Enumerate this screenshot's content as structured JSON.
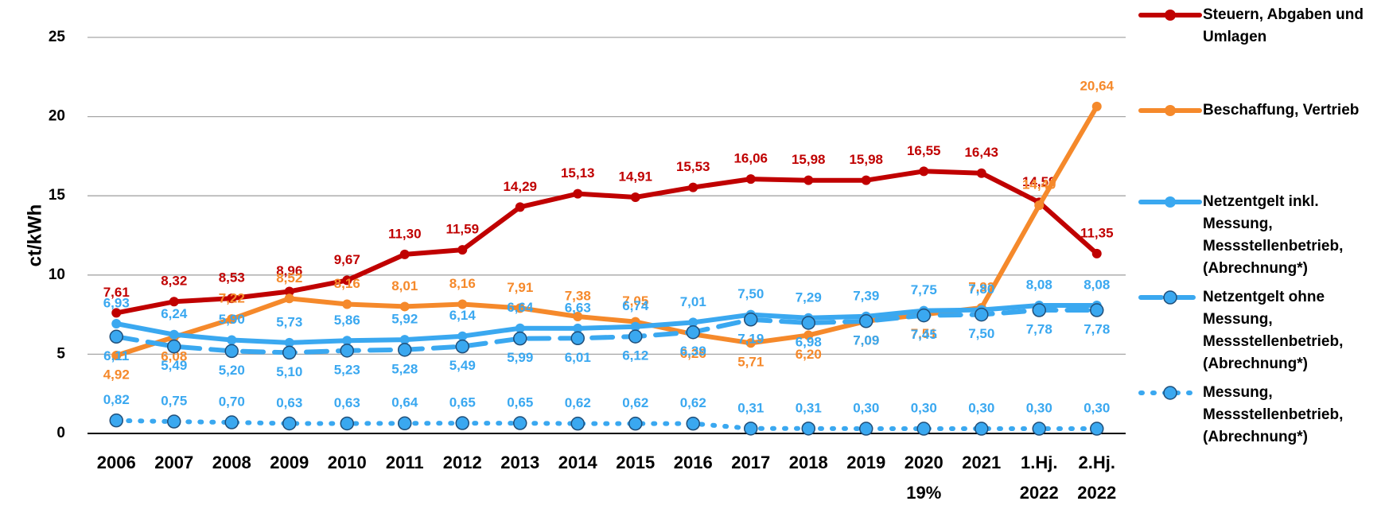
{
  "chart_data": {
    "type": "line",
    "y_label": "ct/kWh",
    "categories": [
      [
        "2006"
      ],
      [
        "2007"
      ],
      [
        "2008"
      ],
      [
        "2009"
      ],
      [
        "2010"
      ],
      [
        "2011"
      ],
      [
        "2012"
      ],
      [
        "2013"
      ],
      [
        "2014"
      ],
      [
        "2015"
      ],
      [
        "2016"
      ],
      [
        "2017"
      ],
      [
        "2018"
      ],
      [
        "2019"
      ],
      [
        "2020",
        "19%"
      ],
      [
        "2021"
      ],
      [
        "1.Hj.",
        "2022"
      ],
      [
        "2.Hj.",
        "2022"
      ]
    ],
    "ylim": [
      0,
      25
    ],
    "yticks": [
      0,
      5,
      10,
      15,
      20,
      25
    ],
    "grid": true,
    "legend": "right",
    "series": [
      {
        "name": "Steuern, Abgaben und Umlagen",
        "color": "#c00000",
        "dash": "solid",
        "label_side": "above",
        "values": [
          7.61,
          8.32,
          8.53,
          8.96,
          9.67,
          11.3,
          11.59,
          14.29,
          15.13,
          14.91,
          15.53,
          16.06,
          15.98,
          15.98,
          16.55,
          16.43,
          14.59,
          11.35
        ],
        "value_labels": [
          "7,61",
          "8,32",
          "8,53",
          "8,96",
          "9,67",
          "11,30",
          "11,59",
          "14,29",
          "15,13",
          "14,91",
          "15,53",
          "16,06",
          "15,98",
          "15,98",
          "16,55",
          "16,43",
          "14,59",
          "11,35"
        ]
      },
      {
        "name": "Beschaffung, Vertrieb",
        "color": "#f5892b",
        "dash": "solid",
        "label_side": "auto",
        "values": [
          4.92,
          6.08,
          7.22,
          8.52,
          8.16,
          8.01,
          8.16,
          7.91,
          7.38,
          7.05,
          6.26,
          5.71,
          6.2,
          7.09,
          7.51,
          7.93,
          14.4,
          20.64
        ],
        "value_labels": [
          "4,92",
          "6,08",
          "7,22",
          "8,52",
          "8,16",
          "8,01",
          "8,16",
          "7,91",
          "7,38",
          "7,05",
          "6,26",
          "5,71",
          "6,20",
          "7,09",
          "7,51",
          "7,93",
          "14,40",
          "20,64"
        ]
      },
      {
        "name": "Netzentgelt inkl. Messung, Messstellenbetrieb, (Abrechnung*)",
        "color": "#3aa8f0",
        "dash": "solid",
        "label_side": "above",
        "values": [
          6.93,
          6.24,
          5.9,
          5.73,
          5.86,
          5.92,
          6.14,
          6.64,
          6.63,
          6.74,
          7.01,
          7.5,
          7.29,
          7.39,
          7.75,
          7.8,
          8.08,
          8.08
        ],
        "value_labels": [
          "6,93",
          "6,24",
          "5,90",
          "5,73",
          "5,86",
          "5,92",
          "6,14",
          "6,64",
          "6,63",
          "6,74",
          "7,01",
          "7,50",
          "7,29",
          "7,39",
          "7,75",
          "7,80",
          "8,08",
          "8,08"
        ]
      },
      {
        "name": "Netzentgelt ohne Messung, Messstellenbetrieb, (Abrechnung*)",
        "color": "#3aa8f0",
        "dash": "dashed",
        "label_side": "below",
        "values": [
          6.11,
          5.49,
          5.2,
          5.1,
          5.23,
          5.28,
          5.49,
          5.99,
          6.01,
          6.12,
          6.39,
          7.19,
          6.98,
          7.09,
          7.45,
          7.5,
          7.78,
          7.78
        ],
        "value_labels": [
          "6,11",
          "5,49",
          "5,20",
          "5,10",
          "5,23",
          "5,28",
          "5,49",
          "5,99",
          "6,01",
          "6,12",
          "6,39",
          "7,19",
          "6,98",
          "7,09",
          "7,45",
          "7,50",
          "7,78",
          "7,78"
        ]
      },
      {
        "name": "Messung, Messstellenbetrieb, (Abrechnung*)",
        "color": "#3aa8f0",
        "dash": "dotted",
        "label_side": "above",
        "values": [
          0.82,
          0.75,
          0.7,
          0.63,
          0.63,
          0.64,
          0.65,
          0.65,
          0.62,
          0.62,
          0.62,
          0.31,
          0.31,
          0.3,
          0.3,
          0.3,
          0.3,
          0.3
        ],
        "value_labels": [
          "0,82",
          "0,75",
          "0,70",
          "0,63",
          "0,63",
          "0,64",
          "0,65",
          "0,65",
          "0,62",
          "0,62",
          "0,62",
          "0,31",
          "0,31",
          "0,30",
          "0,30",
          "0,30",
          "0,30",
          "0,30"
        ]
      }
    ]
  }
}
